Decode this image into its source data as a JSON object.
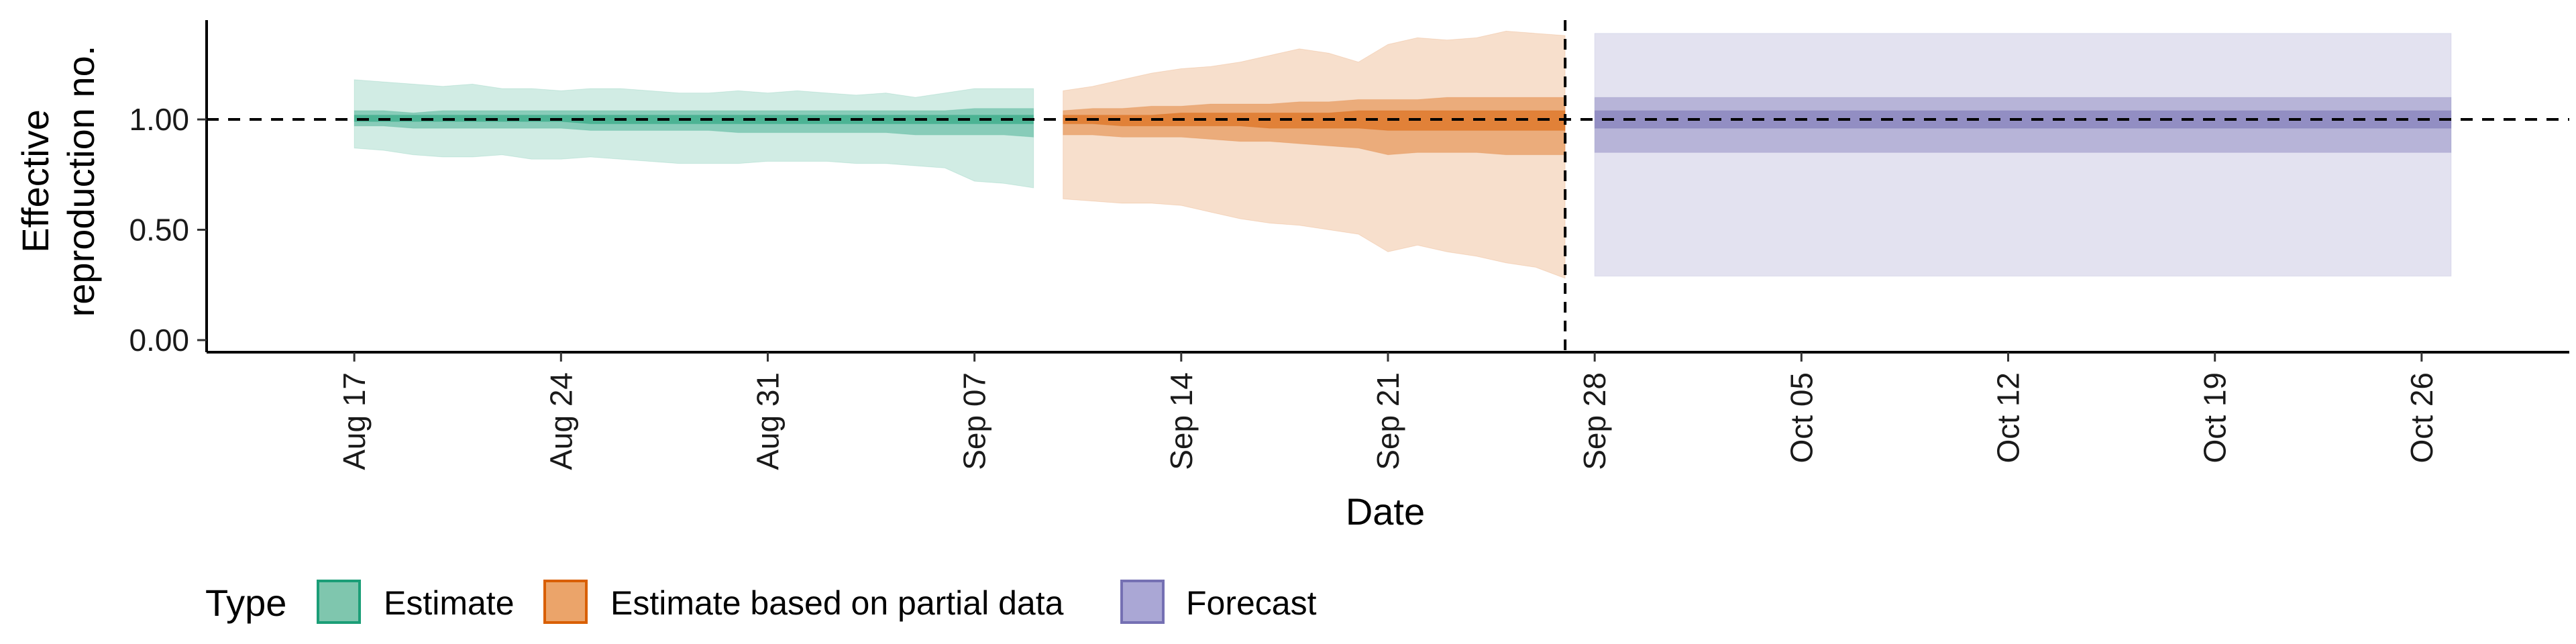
{
  "chart_data": {
    "type": "area",
    "xlabel": "Date",
    "ylabel_lines": [
      "Effective",
      "reproduction no."
    ],
    "y_ticks": [
      0,
      0.5,
      1.0
    ],
    "y_tick_labels": [
      "0.00",
      "0.50",
      "1.00"
    ],
    "ylim": [
      0,
      1.45
    ],
    "xlim": [
      "2021-08-12",
      "2021-10-31"
    ],
    "x_ticks": [
      "2021-08-17",
      "2021-08-24",
      "2021-08-31",
      "2021-09-07",
      "2021-09-14",
      "2021-09-21",
      "2021-09-28",
      "2021-10-05",
      "2021-10-12",
      "2021-10-19",
      "2021-10-26"
    ],
    "x_tick_labels": [
      "Aug 17",
      "Aug 24",
      "Aug 31",
      "Sep 07",
      "Sep 14",
      "Sep 21",
      "Sep 28",
      "Oct 05",
      "Oct 12",
      "Oct 19",
      "Oct 26"
    ],
    "reference_hline": 1.0,
    "forecast_start_vline": "2021-09-27",
    "series": [
      {
        "name": "Estimate",
        "color": "#1b9e77",
        "x": [
          "2021-08-17",
          "2021-08-18",
          "2021-08-19",
          "2021-08-20",
          "2021-08-21",
          "2021-08-22",
          "2021-08-23",
          "2021-08-24",
          "2021-08-25",
          "2021-08-26",
          "2021-08-27",
          "2021-08-28",
          "2021-08-29",
          "2021-08-30",
          "2021-08-31",
          "2021-09-01",
          "2021-09-02",
          "2021-09-03",
          "2021-09-04",
          "2021-09-05",
          "2021-09-06",
          "2021-09-07",
          "2021-09-08",
          "2021-09-09"
        ],
        "lower_90": [
          0.87,
          0.86,
          0.84,
          0.83,
          0.83,
          0.84,
          0.82,
          0.82,
          0.83,
          0.82,
          0.81,
          0.8,
          0.8,
          0.8,
          0.81,
          0.81,
          0.81,
          0.8,
          0.8,
          0.79,
          0.78,
          0.72,
          0.71,
          0.69
        ],
        "upper_90": [
          1.18,
          1.17,
          1.16,
          1.15,
          1.16,
          1.14,
          1.14,
          1.13,
          1.14,
          1.14,
          1.13,
          1.12,
          1.12,
          1.13,
          1.12,
          1.13,
          1.12,
          1.11,
          1.12,
          1.1,
          1.12,
          1.14,
          1.14,
          1.14
        ],
        "lower_50": [
          0.97,
          0.97,
          0.96,
          0.96,
          0.96,
          0.96,
          0.96,
          0.96,
          0.95,
          0.95,
          0.95,
          0.95,
          0.95,
          0.94,
          0.94,
          0.94,
          0.94,
          0.94,
          0.94,
          0.93,
          0.93,
          0.93,
          0.93,
          0.92
        ],
        "upper_50": [
          1.04,
          1.04,
          1.03,
          1.04,
          1.04,
          1.04,
          1.04,
          1.04,
          1.04,
          1.04,
          1.04,
          1.04,
          1.04,
          1.04,
          1.04,
          1.04,
          1.04,
          1.04,
          1.04,
          1.04,
          1.04,
          1.05,
          1.05,
          1.05
        ],
        "lower_20": [
          0.99,
          0.99,
          0.99,
          0.99,
          0.99,
          0.99,
          0.99,
          0.99,
          0.98,
          0.98,
          0.98,
          0.98,
          0.98,
          0.98,
          0.98,
          0.98,
          0.98,
          0.98,
          0.98,
          0.98,
          0.98,
          0.98,
          0.98,
          0.98
        ],
        "upper_20": [
          1.02,
          1.02,
          1.02,
          1.02,
          1.02,
          1.02,
          1.02,
          1.02,
          1.02,
          1.02,
          1.02,
          1.02,
          1.02,
          1.02,
          1.02,
          1.02,
          1.02,
          1.02,
          1.02,
          1.02,
          1.02,
          1.02,
          1.02,
          1.02
        ]
      },
      {
        "name": "Estimate based on partial data",
        "color": "#d95f02",
        "x": [
          "2021-09-10",
          "2021-09-11",
          "2021-09-12",
          "2021-09-13",
          "2021-09-14",
          "2021-09-15",
          "2021-09-16",
          "2021-09-17",
          "2021-09-18",
          "2021-09-19",
          "2021-09-20",
          "2021-09-21",
          "2021-09-22",
          "2021-09-23",
          "2021-09-24",
          "2021-09-25",
          "2021-09-26",
          "2021-09-27"
        ],
        "lower_90": [
          0.64,
          0.63,
          0.62,
          0.62,
          0.61,
          0.58,
          0.55,
          0.53,
          0.52,
          0.5,
          0.48,
          0.4,
          0.43,
          0.4,
          0.38,
          0.35,
          0.33,
          0.28
        ],
        "upper_90": [
          1.13,
          1.15,
          1.18,
          1.21,
          1.23,
          1.24,
          1.26,
          1.29,
          1.32,
          1.3,
          1.26,
          1.34,
          1.37,
          1.36,
          1.37,
          1.4,
          1.39,
          1.38
        ],
        "lower_50": [
          0.93,
          0.93,
          0.92,
          0.92,
          0.92,
          0.91,
          0.9,
          0.9,
          0.89,
          0.88,
          0.87,
          0.84,
          0.85,
          0.85,
          0.85,
          0.84,
          0.84,
          0.84
        ],
        "upper_50": [
          1.04,
          1.05,
          1.05,
          1.06,
          1.06,
          1.07,
          1.07,
          1.07,
          1.08,
          1.08,
          1.09,
          1.09,
          1.09,
          1.1,
          1.1,
          1.1,
          1.1,
          1.1
        ],
        "lower_20": [
          0.98,
          0.98,
          0.97,
          0.97,
          0.97,
          0.97,
          0.97,
          0.96,
          0.96,
          0.96,
          0.96,
          0.95,
          0.95,
          0.95,
          0.95,
          0.95,
          0.95,
          0.95
        ],
        "upper_20": [
          1.02,
          1.02,
          1.02,
          1.02,
          1.03,
          1.03,
          1.03,
          1.03,
          1.03,
          1.03,
          1.04,
          1.04,
          1.04,
          1.04,
          1.04,
          1.04,
          1.04,
          1.04
        ]
      },
      {
        "name": "Forecast",
        "color": "#7570b3",
        "x": [
          "2021-09-28",
          "2021-10-27"
        ],
        "lower_90": [
          0.29,
          0.29
        ],
        "upper_90": [
          1.39,
          1.39
        ],
        "lower_50": [
          0.85,
          0.85
        ],
        "upper_50": [
          1.1,
          1.1
        ],
        "lower_20": [
          0.96,
          0.96
        ],
        "upper_20": [
          1.04,
          1.04
        ]
      }
    ]
  },
  "legend": {
    "title": "Type",
    "items": [
      {
        "label": "Estimate",
        "fill": "#7fc6ae",
        "stroke": "#1b9e77"
      },
      {
        "label": "Estimate based on partial data",
        "fill": "#eba46a",
        "stroke": "#d95f02"
      },
      {
        "label": "Forecast",
        "fill": "#aaa7d5",
        "stroke": "#7570b3"
      }
    ]
  }
}
